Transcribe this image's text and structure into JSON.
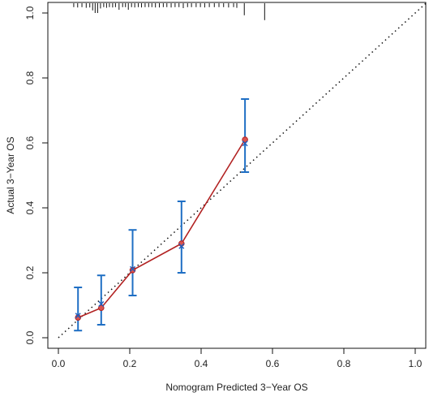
{
  "chart_data": {
    "type": "line",
    "title": "",
    "xlabel": "Nomogram Predicted 3−Year OS",
    "ylabel": "Actual 3−Year OS",
    "xlim": [
      -0.03,
      1.03
    ],
    "ylim": [
      -0.03,
      1.03
    ],
    "x_ticks": [
      0.0,
      0.2,
      0.4,
      0.6,
      0.8,
      1.0
    ],
    "x_tick_labels": [
      "0.0",
      "0.2",
      "0.4",
      "0.6",
      "0.8",
      "1.0"
    ],
    "y_ticks": [
      0.0,
      0.2,
      0.4,
      0.6,
      0.8,
      1.0
    ],
    "y_tick_labels": [
      "0.0",
      "0.2",
      "0.4",
      "0.6",
      "0.8",
      "1.0"
    ],
    "grid": false,
    "legend": "none",
    "reference_line": {
      "x": [
        0,
        1.03
      ],
      "y": [
        0,
        1.03
      ],
      "style": "dotted"
    },
    "series": [
      {
        "x": [
          0.055,
          0.12,
          0.208,
          0.345,
          0.523
        ],
        "y": [
          0.062,
          0.092,
          0.208,
          0.29,
          0.61
        ],
        "color": "#b22222",
        "marker": "circle"
      }
    ],
    "bias_corrected_points": {
      "x": [
        0.055,
        0.12,
        0.208,
        0.345,
        0.523
      ],
      "y": [
        0.068,
        0.104,
        0.212,
        0.282,
        0.598
      ],
      "marker": "x",
      "color": "#1f5fbf"
    },
    "error_bars": {
      "x": [
        0.055,
        0.12,
        0.208,
        0.345,
        0.523
      ],
      "lower": [
        0.022,
        0.04,
        0.13,
        0.2,
        0.51
      ],
      "upper": [
        0.155,
        0.192,
        0.332,
        0.42,
        0.735
      ],
      "color": "#1f6fc4"
    },
    "rug": [
      0.043,
      0.054,
      0.066,
      0.078,
      0.088,
      0.096,
      0.103,
      0.11,
      0.118,
      0.127,
      0.135,
      0.143,
      0.152,
      0.16,
      0.17,
      0.18,
      0.188,
      0.196,
      0.205,
      0.214,
      0.224,
      0.233,
      0.243,
      0.253,
      0.262,
      0.272,
      0.283,
      0.294,
      0.304,
      0.316,
      0.327,
      0.338,
      0.35,
      0.362,
      0.373,
      0.386,
      0.398,
      0.41,
      0.423,
      0.437,
      0.45,
      0.463,
      0.477,
      0.491,
      0.5,
      0.521,
      0.578
    ],
    "rug_heights": [
      0.012,
      0.013,
      0.012,
      0.014,
      0.013,
      0.022,
      0.03,
      0.03,
      0.016,
      0.012,
      0.014,
      0.012,
      0.013,
      0.012,
      0.02,
      0.012,
      0.012,
      0.02,
      0.012,
      0.013,
      0.012,
      0.013,
      0.012,
      0.012,
      0.012,
      0.013,
      0.013,
      0.012,
      0.012,
      0.013,
      0.012,
      0.012,
      0.015,
      0.012,
      0.012,
      0.012,
      0.012,
      0.013,
      0.012,
      0.012,
      0.012,
      0.012,
      0.013,
      0.012,
      0.014,
      0.037,
      0.052
    ]
  }
}
